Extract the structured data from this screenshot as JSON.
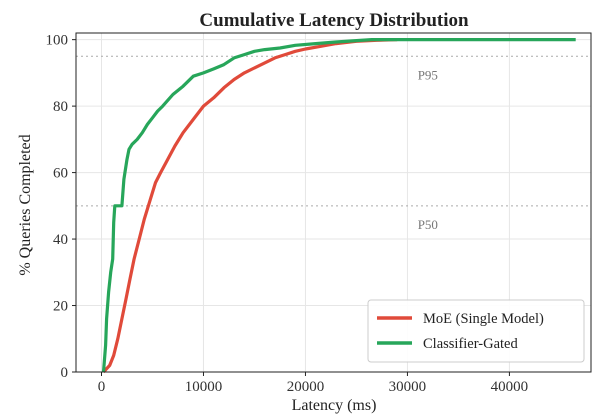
{
  "chart_data": {
    "type": "line",
    "title": "Cumulative Latency Distribution",
    "xlabel": "Latency (ms)",
    "ylabel": "% Queries Completed",
    "xlim": [
      -2500,
      48000
    ],
    "ylim": [
      0,
      102
    ],
    "x_ticks": [
      0,
      10000,
      20000,
      30000,
      40000
    ],
    "y_ticks": [
      0,
      20,
      40,
      60,
      80,
      100
    ],
    "grid": true,
    "legend_position": "bottom-right",
    "reference_lines": [
      {
        "y": 95,
        "label": "P95",
        "label_x": 32000
      },
      {
        "y": 50,
        "label": "P50",
        "label_x": 32000
      }
    ],
    "series": [
      {
        "name": "MoE (Single Model)",
        "color": "#e04a3a",
        "points": [
          [
            200,
            0
          ],
          [
            800,
            2
          ],
          [
            1200,
            5
          ],
          [
            1600,
            10
          ],
          [
            2000,
            16
          ],
          [
            2400,
            22
          ],
          [
            2800,
            28
          ],
          [
            3200,
            34
          ],
          [
            3700,
            40
          ],
          [
            4200,
            46
          ],
          [
            4800,
            52
          ],
          [
            5300,
            57
          ],
          [
            5800,
            60
          ],
          [
            6500,
            64
          ],
          [
            7200,
            68
          ],
          [
            8000,
            72
          ],
          [
            9000,
            76
          ],
          [
            10000,
            80
          ],
          [
            11000,
            82.5
          ],
          [
            12000,
            85.5
          ],
          [
            13000,
            88
          ],
          [
            14000,
            90
          ],
          [
            15000,
            91.5
          ],
          [
            16000,
            93
          ],
          [
            17000,
            94.5
          ],
          [
            18000,
            95.5
          ],
          [
            19000,
            96.5
          ],
          [
            20000,
            97.2
          ],
          [
            21500,
            98
          ],
          [
            23000,
            98.8
          ],
          [
            25000,
            99.5
          ],
          [
            27000,
            99.8
          ],
          [
            29000,
            100
          ]
        ]
      },
      {
        "name": "Classifier-Gated",
        "color": "#27a65a",
        "points": [
          [
            200,
            0
          ],
          [
            400,
            8
          ],
          [
            500,
            16
          ],
          [
            700,
            24
          ],
          [
            900,
            30
          ],
          [
            1100,
            34
          ],
          [
            1200,
            45
          ],
          [
            1300,
            50
          ],
          [
            2000,
            50
          ],
          [
            2200,
            58
          ],
          [
            2500,
            64
          ],
          [
            2700,
            67
          ],
          [
            3000,
            68.5
          ],
          [
            3500,
            70
          ],
          [
            4000,
            72
          ],
          [
            4500,
            74.5
          ],
          [
            5000,
            76.5
          ],
          [
            5500,
            78.5
          ],
          [
            6000,
            80
          ],
          [
            7000,
            83.5
          ],
          [
            8000,
            86
          ],
          [
            9000,
            89
          ],
          [
            10000,
            90
          ],
          [
            11000,
            91.2
          ],
          [
            12000,
            92.5
          ],
          [
            13000,
            94.5
          ],
          [
            14000,
            95.5
          ],
          [
            15000,
            96.5
          ],
          [
            16000,
            97
          ],
          [
            17500,
            97.5
          ],
          [
            19000,
            98.3
          ],
          [
            21000,
            98.8
          ],
          [
            23000,
            99.3
          ],
          [
            25000,
            99.7
          ],
          [
            26500,
            100
          ],
          [
            46500,
            100
          ]
        ]
      }
    ]
  }
}
